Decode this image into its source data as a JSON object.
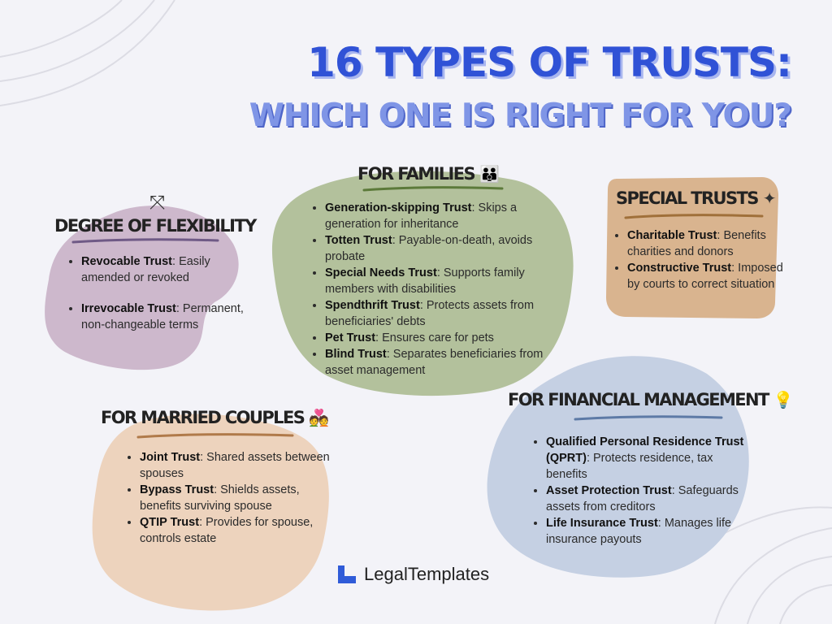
{
  "title": {
    "line1": "16 TYPES OF TRUSTS:",
    "line2": "WHICH ONE IS RIGHT FOR YOU?"
  },
  "colors": {
    "title_main": "#3052d6",
    "title_sub": "#7f95e6",
    "flexibility_blob": "#cdb8cc",
    "families_blob": "#b3c19c",
    "special_blob": "#d9b48f",
    "financial_blob": "#c5d0e3",
    "married_blob": "#edd3bd"
  },
  "sections": {
    "flexibility": {
      "title": "DEGREE OF FLEXIBILITY",
      "icon": "split-arrows-icon",
      "items": [
        {
          "name": "Revocable Trust",
          "desc": ": Easily amended or revoked"
        },
        {
          "name": "Irrevocable Trust",
          "desc": ": Permanent, non-changeable terms"
        }
      ]
    },
    "families": {
      "title": "FOR FAMILIES",
      "icon": "family-icon",
      "items": [
        {
          "name": "Generation-skipping Trust",
          "desc": ": Skips a generation for inheritance"
        },
        {
          "name": "Totten Trust",
          "desc": ": Payable-on-death, avoids probate"
        },
        {
          "name": "Special Needs Trust",
          "desc": ": Supports family members with disabilities"
        },
        {
          "name": "Spendthrift Trust",
          "desc": ": Protects assets from beneficiaries' debts"
        },
        {
          "name": "Pet Trust",
          "desc": ": Ensures care for pets"
        },
        {
          "name": "Blind Trust",
          "desc": ": Separates beneficiaries from asset management"
        }
      ]
    },
    "special": {
      "title": "SPECIAL TRUSTS",
      "icon": "sparkle-icon",
      "items": [
        {
          "name": "Charitable Trust",
          "desc": ": Benefits charities and donors"
        },
        {
          "name": "Constructive Trust",
          "desc": ": Imposed by courts to correct situation"
        }
      ]
    },
    "financial": {
      "title": "FOR FINANCIAL MANAGEMENT",
      "icon": "lightbulb-dollar-icon",
      "items": [
        {
          "name": "Qualified Personal Residence Trust (QPRT)",
          "desc": ": Protects residence, tax benefits"
        },
        {
          "name": "Asset Protection Trust",
          "desc": ": Safeguards assets from creditors"
        },
        {
          "name": "Life Insurance Trust",
          "desc": ": Manages life insurance payouts"
        }
      ]
    },
    "married": {
      "title": "FOR MARRIED COUPLES",
      "icon": "couple-icon",
      "items": [
        {
          "name": "Joint Trust",
          "desc": ": Shared assets between spouses"
        },
        {
          "name": "Bypass Trust",
          "desc": ": Shields assets, benefits surviving spouse"
        },
        {
          "name": "QTIP Trust",
          "desc": ": Provides for spouse, controls estate"
        }
      ]
    }
  },
  "logo": {
    "icon": "legaltemplates-logo-icon",
    "text": "LegalTemplates"
  }
}
